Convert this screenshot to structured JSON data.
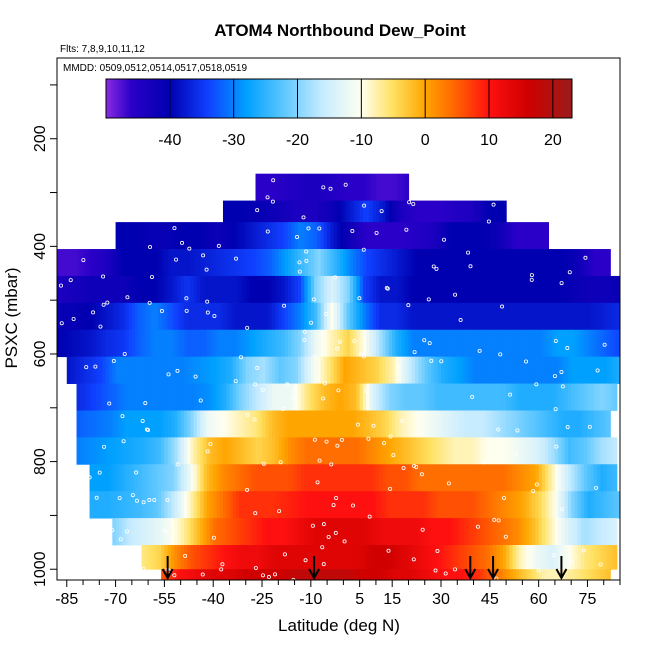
{
  "chart_data": {
    "type": "heatmap",
    "title": "ATOM4 Northbound Dew_Point",
    "flights_label": "Flts: 7,8,9,10,11,12",
    "dates_label": "MMDD: 0509,0512,0514,0517,0518,0519",
    "xlabel": "Latitude (deg N)",
    "ylabel": "PSXC (mbar)",
    "xlim": [
      -88,
      85
    ],
    "ylim": [
      1020,
      50
    ],
    "x_ticks": [
      "-85",
      "-70",
      "-55",
      "-40",
      "-25",
      "-10",
      "5",
      "15",
      "30",
      "45",
      "60",
      "75"
    ],
    "x_tick_values": [
      -85,
      -70,
      -55,
      -40,
      -25,
      -10,
      5,
      15,
      30,
      45,
      60,
      75
    ],
    "y_ticks": [
      "200",
      "400",
      "600",
      "800",
      "1000"
    ],
    "y_tick_values": [
      200,
      400,
      600,
      800,
      1000
    ],
    "colorbar": {
      "range": [
        -50,
        23
      ],
      "ticks": [
        "-40",
        "-30",
        "-20",
        "-10",
        "0",
        "10",
        "20"
      ],
      "tick_values": [
        -40,
        -30,
        -20,
        -10,
        0,
        10,
        20
      ],
      "stops": [
        {
          "v": -50,
          "color": "#8a2be2"
        },
        {
          "v": -46,
          "color": "#2a00c8"
        },
        {
          "v": -40,
          "color": "#0000b0"
        },
        {
          "v": -34,
          "color": "#1040ff"
        },
        {
          "v": -28,
          "color": "#00a0ff"
        },
        {
          "v": -22,
          "color": "#60c8ff"
        },
        {
          "v": -16,
          "color": "#c8ecff"
        },
        {
          "v": -10,
          "color": "#fffff0"
        },
        {
          "v": -5,
          "color": "#ffe060"
        },
        {
          "v": 0,
          "color": "#ffa500"
        },
        {
          "v": 5,
          "color": "#ff6000"
        },
        {
          "v": 10,
          "color": "#ff1010"
        },
        {
          "v": 16,
          "color": "#d00000"
        },
        {
          "v": 23,
          "color": "#9b1c1c"
        }
      ]
    },
    "profile_arrows_latitude": [
      -54,
      -9,
      39,
      46,
      67
    ],
    "levels": [
      {
        "p_top": 265,
        "p_bot": 315,
        "x_start": -27,
        "x_end": 20,
        "values": [
          -46,
          -46,
          -45,
          -44,
          -44,
          -45,
          -46,
          -46,
          -47,
          -47,
          -46
        ]
      },
      {
        "p_top": 315,
        "p_bot": 355,
        "x_start": -37,
        "x_end": 50,
        "values": [
          -40,
          -40,
          -41,
          -42,
          -44,
          -44,
          -42,
          -38,
          -34,
          -38,
          -44,
          -46,
          -46,
          -45,
          -44,
          -40,
          -40
        ]
      },
      {
        "p_top": 355,
        "p_bot": 405,
        "x_start": -70,
        "x_end": 63,
        "values": [
          -40,
          -40,
          -41,
          -41,
          -40,
          -40,
          -42,
          -40,
          -38,
          -36,
          -34,
          -30,
          -32,
          -38,
          -42,
          -46,
          -46,
          -46,
          -45,
          -44,
          -40,
          -40,
          -40,
          -42,
          -46,
          -46,
          -46
        ]
      },
      {
        "p_top": 405,
        "p_bot": 455,
        "x_start": -88,
        "x_end": 82,
        "values": [
          -47,
          -47,
          -46,
          -44,
          -40,
          -40,
          -40,
          -38,
          -38,
          -37,
          -36,
          -35,
          -34,
          -32,
          -28,
          -24,
          -20,
          -25,
          -30,
          -34,
          -36,
          -38,
          -40,
          -40,
          -40,
          -40,
          -40,
          -40,
          -40,
          -40,
          -40,
          -40,
          -42,
          -46,
          -46
        ]
      },
      {
        "p_top": 455,
        "p_bot": 505,
        "x_start": -88,
        "x_end": 85,
        "values": [
          -44,
          -43,
          -42,
          -42,
          -42,
          -40,
          -40,
          -38,
          -35,
          -38,
          -38,
          -38,
          -40,
          -40,
          -38,
          -34,
          -20,
          -14,
          -20,
          -34,
          -38,
          -38,
          -40,
          -40,
          -40,
          -40,
          -40,
          -40,
          -40,
          -40,
          -40,
          -40,
          -41,
          -42,
          -42,
          -41
        ]
      },
      {
        "p_top": 505,
        "p_bot": 555,
        "x_start": -88,
        "x_end": 85,
        "values": [
          -41,
          -41,
          -40,
          -38,
          -36,
          -32,
          -30,
          -33,
          -36,
          -36,
          -36,
          -38,
          -38,
          -38,
          -34,
          -30,
          -24,
          -10,
          -22,
          -30,
          -36,
          -36,
          -38,
          -38,
          -38,
          -38,
          -38,
          -38,
          -38,
          -38,
          -38,
          -38,
          -38,
          -38,
          -37,
          -36
        ]
      },
      {
        "p_top": 555,
        "p_bot": 605,
        "x_start": -88,
        "x_end": 85,
        "values": [
          -40,
          -39,
          -38,
          -36,
          -35,
          -32,
          -30,
          -30,
          -32,
          -32,
          -30,
          -30,
          -28,
          -26,
          -24,
          -20,
          -12,
          -8,
          -4,
          -10,
          -18,
          -26,
          -30,
          -30,
          -30,
          -30,
          -30,
          -30,
          -30,
          -30,
          -30,
          -28,
          -28,
          -30,
          -32,
          -34
        ]
      },
      {
        "p_top": 605,
        "p_bot": 655,
        "x_start": -85,
        "x_end": 85,
        "values": [
          -38,
          -36,
          -34,
          -30,
          -30,
          -30,
          -30,
          -30,
          -29,
          -28,
          -26,
          -20,
          -18,
          -22,
          -20,
          -12,
          -6,
          0,
          -2,
          -4,
          -8,
          -16,
          -22,
          -26,
          -28,
          -30,
          -30,
          -30,
          -30,
          -30,
          -30,
          -28,
          -28,
          -28,
          -26
        ]
      },
      {
        "p_top": 655,
        "p_bot": 705,
        "x_start": -82,
        "x_end": 84,
        "values": [
          -36,
          -34,
          -32,
          -30,
          -30,
          -30,
          -30,
          -30,
          -29,
          -26,
          -20,
          -16,
          -12,
          -12,
          -6,
          -2,
          0,
          -2,
          -14,
          -20,
          -22,
          -22,
          -24,
          -24,
          -24,
          -24,
          -24,
          -26,
          -26,
          -26,
          -24,
          -22,
          -20,
          -22
        ]
      },
      {
        "p_top": 705,
        "p_bot": 755,
        "x_start": -82,
        "x_end": 82,
        "values": [
          -32,
          -31,
          -30,
          -28,
          -28,
          -28,
          -26,
          -20,
          -12,
          -10,
          -8,
          -6,
          -2,
          0,
          0,
          0,
          0,
          0,
          -2,
          -4,
          -8,
          -10,
          -12,
          -14,
          -16,
          -16,
          -18,
          -20,
          -22,
          -24,
          -26,
          -26,
          -24,
          -22
        ]
      },
      {
        "p_top": 755,
        "p_bot": 805,
        "x_start": -82,
        "x_end": 84,
        "values": [
          -30,
          -29,
          -28,
          -27,
          -26,
          -24,
          -18,
          -8,
          -2,
          0,
          -2,
          -4,
          -2,
          2,
          4,
          4,
          4,
          4,
          2,
          0,
          -2,
          -4,
          -6,
          -8,
          -8,
          -10,
          -10,
          -12,
          -14,
          -18,
          -24,
          -22,
          -18,
          -16
        ]
      },
      {
        "p_top": 805,
        "p_bot": 855,
        "x_start": -78,
        "x_end": 84,
        "values": [
          -28,
          -28,
          -26,
          -24,
          -22,
          -20,
          -12,
          -2,
          2,
          4,
          6,
          6,
          6,
          8,
          8,
          8,
          8,
          8,
          6,
          6,
          4,
          4,
          4,
          4,
          4,
          4,
          2,
          0,
          -8,
          -16,
          -22,
          -26,
          -24
        ]
      },
      {
        "p_top": 855,
        "p_bot": 905,
        "x_start": -78,
        "x_end": 85,
        "values": [
          -26,
          -26,
          -25,
          -24,
          -22,
          -16,
          -8,
          0,
          4,
          8,
          8,
          8,
          9,
          10,
          10,
          10,
          10,
          10,
          8,
          8,
          8,
          6,
          6,
          6,
          4,
          2,
          0,
          -4,
          -10,
          -20,
          -26,
          -24,
          -22
        ]
      },
      {
        "p_top": 905,
        "p_bot": 955,
        "x_start": -71,
        "x_end": 84,
        "values": [
          -20,
          -16,
          -14,
          -12,
          -8,
          -2,
          4,
          6,
          8,
          10,
          10,
          12,
          14,
          14,
          14,
          14,
          12,
          12,
          12,
          10,
          10,
          8,
          6,
          4,
          2,
          -2,
          -8,
          -14,
          -18,
          -16,
          -14
        ]
      },
      {
        "p_top": 955,
        "p_bot": 1000,
        "x_start": -62,
        "x_end": 84,
        "values": [
          -6,
          -4,
          2,
          6,
          8,
          10,
          12,
          12,
          14,
          14,
          14,
          14,
          14,
          14,
          16,
          16,
          14,
          12,
          10,
          8,
          6,
          4,
          0,
          -8,
          -12,
          -14,
          -10,
          -6,
          -4,
          -2
        ]
      },
      {
        "p_top": 1000,
        "p_bot": 1020,
        "x_start": -56,
        "x_end": 82,
        "values": [
          6,
          10,
          12,
          14,
          14,
          16,
          16,
          16,
          18,
          18,
          18,
          18,
          16,
          16,
          14,
          14,
          12,
          10,
          10,
          8,
          4,
          0,
          -4,
          -8,
          -8,
          -6,
          -4,
          -2
        ]
      }
    ]
  }
}
